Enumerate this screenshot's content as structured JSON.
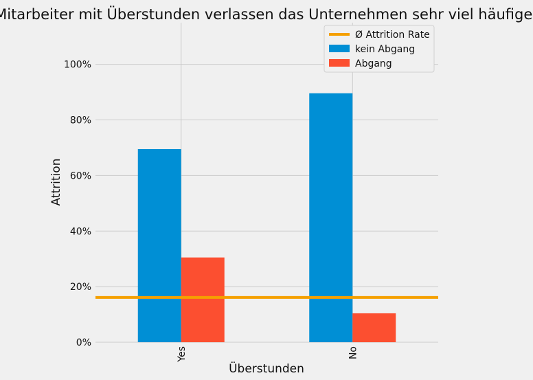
{
  "chart_data": {
    "type": "bar",
    "title": "Mitarbeiter mit Überstunden verlassen das Unternehmen sehr viel häufiger",
    "xlabel": "Überstunden",
    "ylabel": "Attrition",
    "categories": [
      "Yes",
      "No"
    ],
    "series": [
      {
        "name": "kein Abgang",
        "color": "#008fd5",
        "values": [
          0.695,
          0.896
        ]
      },
      {
        "name": "Abgang",
        "color": "#fc4f30",
        "values": [
          0.305,
          0.104
        ]
      }
    ],
    "reference_line": {
      "name": "Ø Attrition Rate",
      "value": 0.161,
      "color": "#f5a000"
    },
    "yticks": [
      0,
      0.2,
      0.4,
      0.6,
      0.8,
      1.0
    ],
    "ytick_labels": [
      "0%",
      "20%",
      "40%",
      "60%",
      "80%",
      "100%"
    ],
    "ylim": [
      0,
      1.15
    ],
    "grid": true,
    "legend_position": "top-right"
  }
}
